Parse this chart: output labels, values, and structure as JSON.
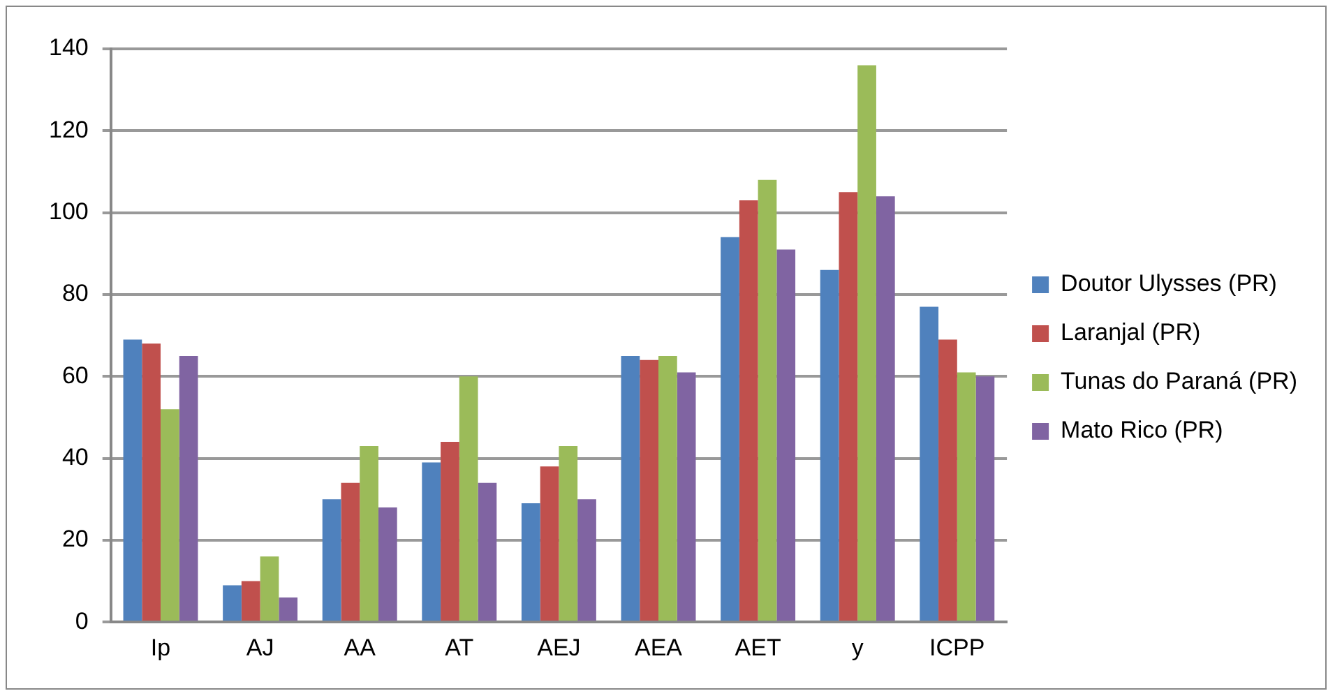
{
  "chart_data": {
    "type": "bar",
    "categories": [
      "Ip",
      "AJ",
      "AA",
      "AT",
      "AEJ",
      "AEA",
      "AET",
      "y",
      "ICPP"
    ],
    "series": [
      {
        "name": "Doutor Ulysses (PR)",
        "color": "#4f81bd",
        "values": [
          69,
          9,
          30,
          39,
          29,
          65,
          94,
          86,
          77
        ]
      },
      {
        "name": "Laranjal (PR)",
        "color": "#c0504d",
        "values": [
          68,
          10,
          34,
          44,
          38,
          64,
          103,
          105,
          69
        ]
      },
      {
        "name": "Tunas do Paraná (PR)",
        "color": "#9bbb59",
        "values": [
          52,
          16,
          43,
          60,
          43,
          65,
          108,
          136,
          61
        ]
      },
      {
        "name": "Mato Rico (PR)",
        "color": "#8064a2",
        "values": [
          65,
          6,
          28,
          34,
          30,
          61,
          91,
          104,
          60
        ]
      }
    ],
    "ylim": [
      0,
      140
    ],
    "yticks": [
      0,
      20,
      40,
      60,
      80,
      100,
      120,
      140
    ],
    "grid": "y",
    "legend": "right"
  }
}
